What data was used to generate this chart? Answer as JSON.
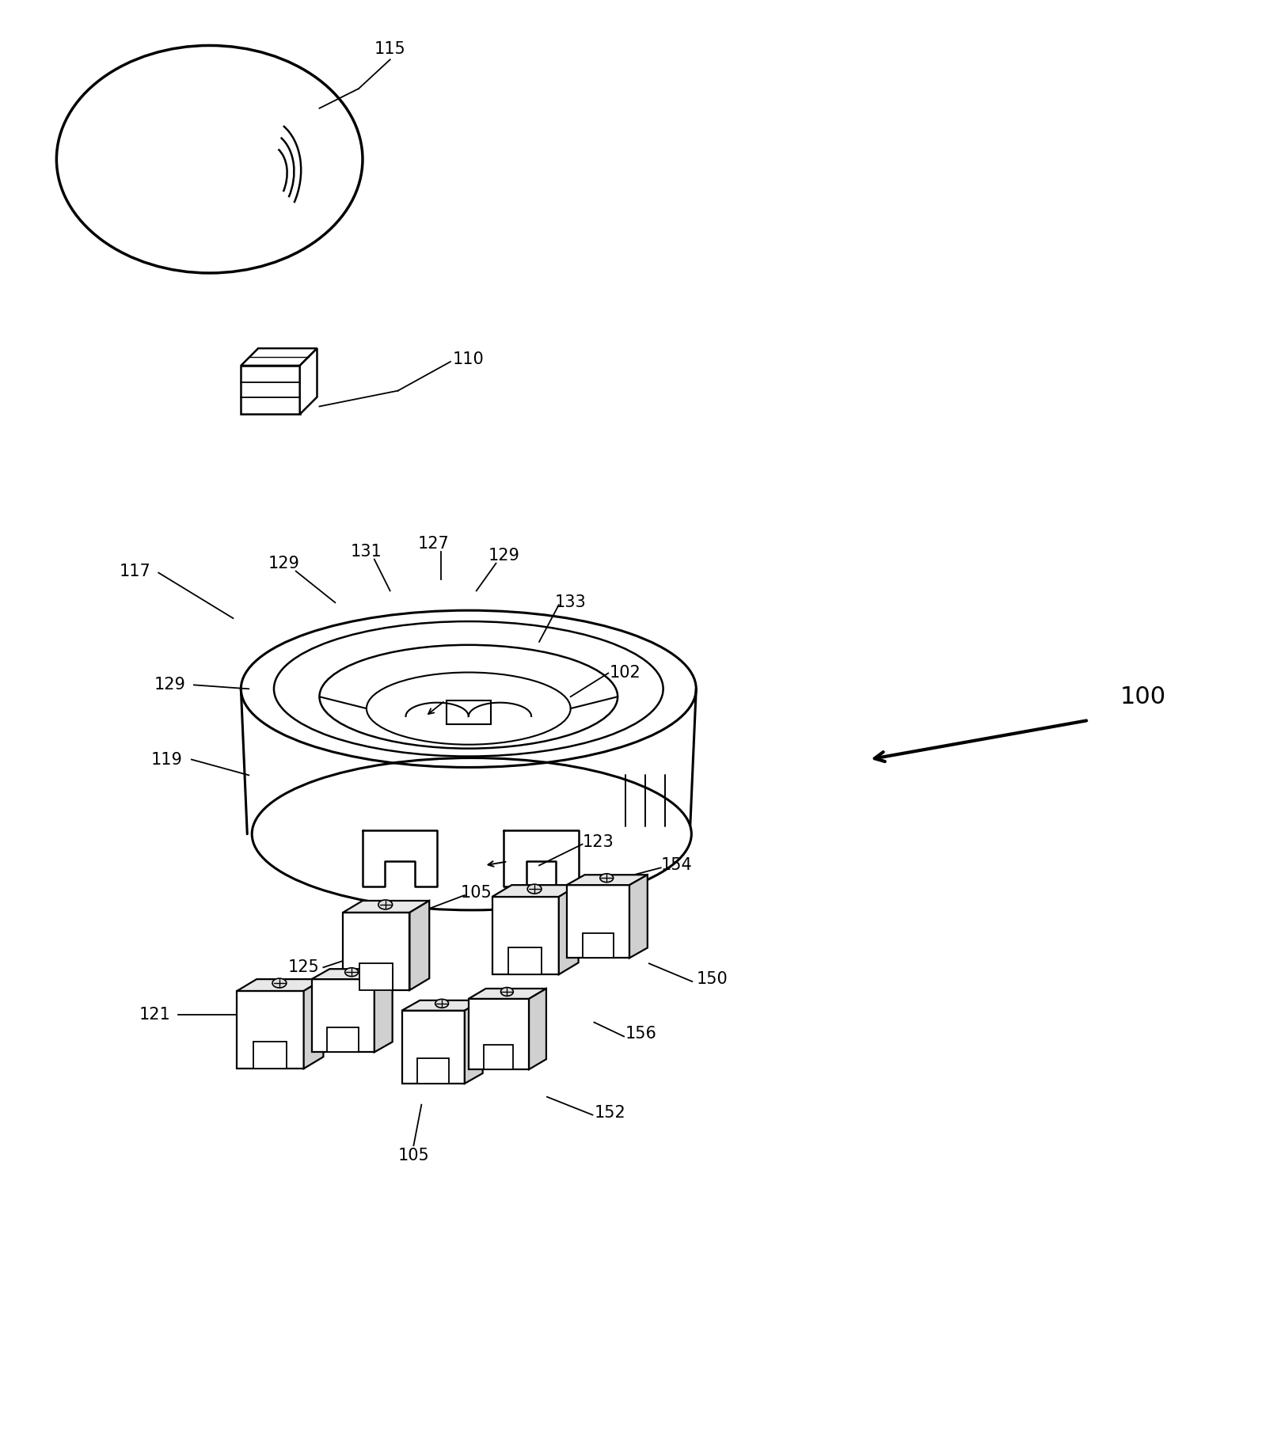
{
  "bg_color": "#ffffff",
  "line_color": "#000000",
  "figsize": [
    15.94,
    18.13
  ],
  "dpi": 100
}
